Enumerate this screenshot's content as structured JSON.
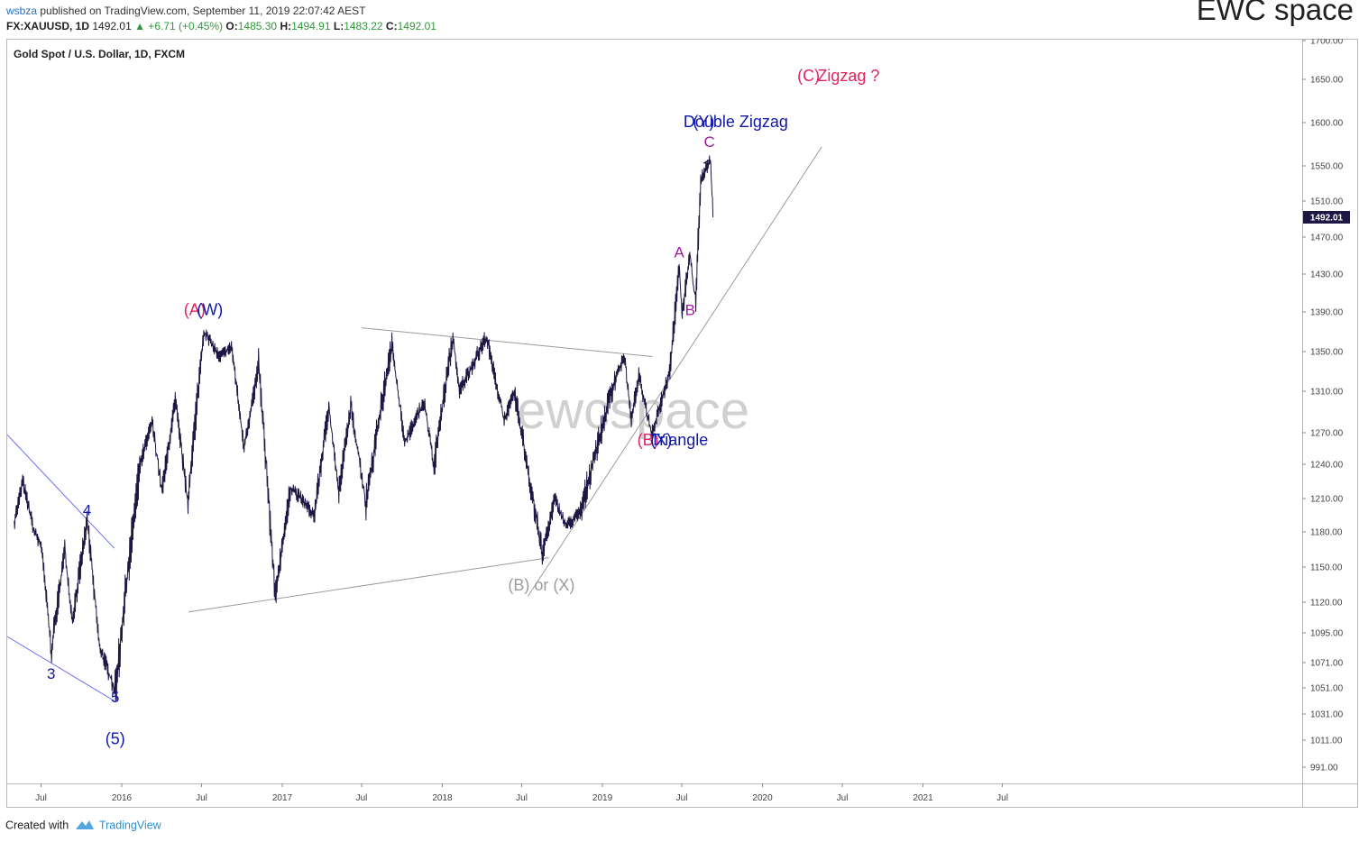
{
  "header": {
    "username": "wsbza",
    "published_text": "published on TradingView.com, September 11, 2019 22:07:42 AEST",
    "brand": "EWC space"
  },
  "ohlc": {
    "symbol": "FX:XAUUSD, 1D",
    "last": "1492.01",
    "change": "▲ +6.71 (+0.45%)",
    "o_label": "O:",
    "o": "1485.30",
    "h_label": "H:",
    "h": "1494.91",
    "l_label": "L:",
    "l": "1483.22",
    "c_label": "C:",
    "c": "1492.01"
  },
  "footer": {
    "created_with": "Created with",
    "brand": "TradingView"
  },
  "colors": {
    "candles": "#1f1644",
    "wave_blue": "#1118a8",
    "wave_pink": "#e0245e",
    "wave_purple": "#a01a9e",
    "trendline_gray": "#9c9c9c",
    "channel_blue": "#6b6cf0",
    "price_badge": "#1f1644",
    "watermark": "#d0d0d0"
  },
  "chart_data": {
    "type": "candlestick",
    "title": "Gold Spot / U.S. Dollar, 1D, FXCM",
    "watermark": "ewcspace",
    "last_price_label": "1492.01",
    "y_ticks": [
      1700,
      1650,
      1600,
      1550,
      1510,
      1470,
      1430,
      1390,
      1350,
      1310,
      1270,
      1240,
      1210,
      1180,
      1150,
      1120,
      1095,
      1071,
      1051,
      1031,
      1011,
      991
    ],
    "y_tick_labels": [
      "1700.00",
      "1650.00",
      "1600.00",
      "1550.00",
      "1510.00",
      "1470.00",
      "1430.00",
      "1390.00",
      "1350.00",
      "1310.00",
      "1270.00",
      "1240.00",
      "1210.00",
      "1180.00",
      "1150.00",
      "1120.00",
      "1095.00",
      "1071.00",
      "1051.00",
      "1031.00",
      "1011.00",
      "991.00"
    ],
    "x_ticks": [
      {
        "date": "2015-07-01",
        "label": "Jul"
      },
      {
        "date": "2016-01-01",
        "label": "2016"
      },
      {
        "date": "2016-07-01",
        "label": "Jul"
      },
      {
        "date": "2017-01-01",
        "label": "2017"
      },
      {
        "date": "2017-07-01",
        "label": "Jul"
      },
      {
        "date": "2018-01-01",
        "label": "2018"
      },
      {
        "date": "2018-07-01",
        "label": "Jul"
      },
      {
        "date": "2019-01-01",
        "label": "2019"
      },
      {
        "date": "2019-07-01",
        "label": "Jul"
      },
      {
        "date": "2020-01-01",
        "label": "2020"
      },
      {
        "date": "2020-07-01",
        "label": "Jul"
      },
      {
        "date": "2021-01-01",
        "label": "2021"
      },
      {
        "date": "2021-07-01",
        "label": "Jul"
      }
    ],
    "price_path": [
      [
        "2015-05-01",
        1190
      ],
      [
        "2015-05-20",
        1225
      ],
      [
        "2015-06-15",
        1180
      ],
      [
        "2015-07-01",
        1168
      ],
      [
        "2015-07-24",
        1080
      ],
      [
        "2015-08-24",
        1165
      ],
      [
        "2015-09-10",
        1105
      ],
      [
        "2015-10-14",
        1190
      ],
      [
        "2015-11-10",
        1085
      ],
      [
        "2015-12-17",
        1048
      ],
      [
        "2016-02-11",
        1240
      ],
      [
        "2016-03-10",
        1280
      ],
      [
        "2016-04-01",
        1215
      ],
      [
        "2016-05-02",
        1300
      ],
      [
        "2016-05-30",
        1205
      ],
      [
        "2016-07-06",
        1370
      ],
      [
        "2016-08-10",
        1345
      ],
      [
        "2016-09-07",
        1355
      ],
      [
        "2016-10-05",
        1255
      ],
      [
        "2016-11-08",
        1335
      ],
      [
        "2016-12-15",
        1125
      ],
      [
        "2017-01-20",
        1220
      ],
      [
        "2017-03-15",
        1195
      ],
      [
        "2017-04-17",
        1295
      ],
      [
        "2017-05-09",
        1215
      ],
      [
        "2017-06-06",
        1295
      ],
      [
        "2017-07-10",
        1205
      ],
      [
        "2017-09-08",
        1358
      ],
      [
        "2017-10-06",
        1260
      ],
      [
        "2017-11-20",
        1300
      ],
      [
        "2017-12-12",
        1238
      ],
      [
        "2018-01-25",
        1365
      ],
      [
        "2018-02-08",
        1310
      ],
      [
        "2018-04-11",
        1365
      ],
      [
        "2018-05-21",
        1282
      ],
      [
        "2018-06-14",
        1308
      ],
      [
        "2018-08-16",
        1160
      ],
      [
        "2018-09-14",
        1210
      ],
      [
        "2018-10-09",
        1185
      ],
      [
        "2018-11-12",
        1198
      ],
      [
        "2019-01-31",
        1325
      ],
      [
        "2019-02-20",
        1345
      ],
      [
        "2019-03-07",
        1283
      ],
      [
        "2019-03-25",
        1325
      ],
      [
        "2019-04-23",
        1268
      ],
      [
        "2019-06-03",
        1330
      ],
      [
        "2019-06-25",
        1438
      ],
      [
        "2019-07-01",
        1385
      ],
      [
        "2019-07-19",
        1452
      ],
      [
        "2019-08-01",
        1400
      ],
      [
        "2019-08-13",
        1535
      ],
      [
        "2019-09-04",
        1557
      ],
      [
        "2019-09-10",
        1492
      ]
    ],
    "trendlines": [
      {
        "from": [
          "2016-06-01",
          1112
        ],
        "to": [
          "2018-09-01",
          1158
        ]
      },
      {
        "from": [
          "2017-07-01",
          1374
        ],
        "to": [
          "2019-04-25",
          1345
        ]
      },
      {
        "from": [
          "2018-07-15",
          1125
        ],
        "to": [
          "2020-05-15",
          1572
        ]
      },
      {
        "from": [
          "2019-08-20",
          1553
        ],
        "to": [
          "2019-09-03",
          1557
        ]
      }
    ],
    "channel_lines": [
      {
        "from": [
          "2015-04-15",
          1268
        ],
        "to": [
          "2015-12-15",
          1166
        ]
      },
      {
        "from": [
          "2015-04-15",
          1092
        ],
        "to": [
          "2015-12-15",
          1041
        ]
      }
    ],
    "annotations": [
      {
        "text": "4",
        "date": "2015-10-14",
        "price": 1195,
        "color": "wave_blue"
      },
      {
        "text": "3",
        "date": "2015-07-24",
        "price": 1058,
        "color": "wave_blue"
      },
      {
        "text": "5",
        "date": "2015-12-17",
        "price": 1040,
        "color": "wave_blue"
      },
      {
        "text": "(5)",
        "date": "2015-12-17",
        "price": 1008,
        "color": "wave_blue"
      },
      {
        "text": "(A)",
        "date": "2016-06-15",
        "price": 1387,
        "color": "wave_pink"
      },
      {
        "text": "(W)",
        "date": "2016-07-20",
        "price": 1387,
        "color": "wave_blue"
      },
      {
        "text": "(B) or (X)",
        "date": "2018-08-15",
        "price": 1130,
        "color": "trendline_gray"
      },
      {
        "text": "(B)",
        "date": "2019-04-15",
        "price": 1258,
        "color": "wave_pink"
      },
      {
        "text": "(X)",
        "date": "2019-05-15",
        "price": 1258,
        "color": "wave_blue"
      },
      {
        "text": "Triangle",
        "date": "2019-06-25",
        "price": 1258,
        "color": "wave_blue"
      },
      {
        "text": "A",
        "date": "2019-06-25",
        "price": 1448,
        "color": "wave_purple"
      },
      {
        "text": "B",
        "date": "2019-07-20",
        "price": 1387,
        "color": "wave_purple"
      },
      {
        "text": "C",
        "date": "2019-09-02",
        "price": 1572,
        "color": "wave_purple"
      },
      {
        "text": "(Y)",
        "date": "2019-08-20",
        "price": 1595,
        "color": "wave_blue"
      },
      {
        "text": "Double Zigzag",
        "date": "2019-11-01",
        "price": 1595,
        "color": "wave_blue"
      },
      {
        "text": "(C)",
        "date": "2020-04-15",
        "price": 1648,
        "color": "wave_pink"
      },
      {
        "text": "Zigzag ?",
        "date": "2020-07-15",
        "price": 1648,
        "color": "wave_pink"
      }
    ]
  }
}
